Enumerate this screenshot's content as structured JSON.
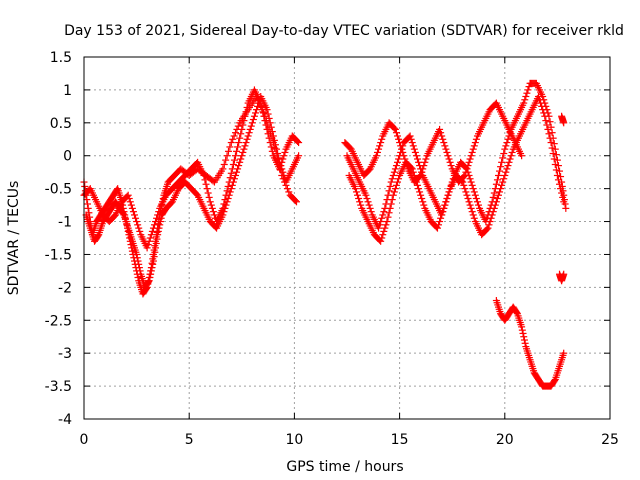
{
  "chart_data": {
    "type": "scatter",
    "title": "Day 153 of 2021, Sidereal Day-to-day VTEC variation (SDTVAR) for receiver rkld",
    "xlabel": "GPS time / hours",
    "ylabel": "SDTVAR / TECUs",
    "xlim": [
      0,
      25
    ],
    "ylim": [
      -4,
      1.5
    ],
    "xticks": [
      0,
      5,
      10,
      15,
      20,
      25
    ],
    "xtick_labels": [
      "0",
      "5",
      "10",
      "15",
      "20",
      "25"
    ],
    "yticks": [
      -4,
      -3.5,
      -3,
      -2.5,
      -2,
      -1.5,
      -1,
      -0.5,
      0,
      0.5,
      1,
      1.5
    ],
    "ytick_labels": [
      "-4",
      "-3.5",
      "-3",
      "-2.5",
      "-2",
      "-1.5",
      "-1",
      "-0.5",
      "0",
      "0.5",
      "1",
      "1.5"
    ],
    "grid": true,
    "marker": "+",
    "color": "#ff0000",
    "series": [
      {
        "name": "s1",
        "x": [
          0.0,
          0.2,
          0.4,
          0.6,
          0.8,
          1.0,
          1.2,
          1.4,
          1.6,
          1.8,
          2.0,
          2.2,
          2.4,
          2.6,
          2.8,
          3.0,
          3.2,
          3.4,
          3.6,
          3.8,
          4.0,
          4.3,
          4.6,
          5.0,
          5.4,
          5.8,
          6.2,
          6.6,
          7.0,
          7.4,
          7.8,
          8.2,
          8.6,
          9.0,
          9.4,
          9.8,
          10.1
        ],
        "y": [
          -0.4,
          -0.8,
          -1.2,
          -1.0,
          -0.9,
          -0.8,
          -0.7,
          -0.6,
          -0.5,
          -0.7,
          -1.0,
          -1.3,
          -1.6,
          -1.9,
          -2.1,
          -2.0,
          -1.7,
          -1.3,
          -0.9,
          -0.6,
          -0.4,
          -0.3,
          -0.2,
          -0.3,
          -0.2,
          -0.3,
          -0.4,
          -0.2,
          0.2,
          0.5,
          0.7,
          0.9,
          0.6,
          0.2,
          -0.3,
          -0.6,
          -0.7
        ]
      },
      {
        "name": "s2",
        "x": [
          0.1,
          0.3,
          0.5,
          0.7,
          0.9,
          1.1,
          1.3,
          1.5,
          1.7,
          1.9,
          2.1,
          2.3,
          2.5,
          2.7,
          2.9,
          3.1,
          3.3,
          3.5,
          3.7,
          3.9,
          4.2,
          4.5,
          4.8,
          5.1,
          5.4,
          5.7,
          6.0,
          6.3,
          6.6,
          6.9,
          7.2,
          7.5,
          7.8,
          8.1,
          8.4,
          8.7,
          9.0,
          9.3,
          9.6,
          9.9,
          10.2
        ],
        "y": [
          -0.9,
          -1.1,
          -1.3,
          -1.2,
          -1.0,
          -0.9,
          -0.8,
          -0.7,
          -0.8,
          -0.9,
          -1.1,
          -1.3,
          -1.5,
          -1.8,
          -2.0,
          -1.9,
          -1.6,
          -1.2,
          -0.9,
          -0.8,
          -0.7,
          -0.5,
          -0.4,
          -0.5,
          -0.6,
          -0.8,
          -1.0,
          -1.1,
          -0.9,
          -0.6,
          -0.3,
          0.0,
          0.3,
          0.6,
          0.9,
          0.7,
          0.3,
          -0.1,
          -0.4,
          -0.2,
          0.0
        ]
      },
      {
        "name": "s3",
        "x": [
          0.0,
          0.3,
          0.6,
          0.9,
          1.2,
          1.5,
          1.8,
          2.1,
          2.4,
          2.7,
          3.0,
          3.3,
          3.6,
          3.9,
          4.2,
          4.5,
          4.8,
          5.1,
          5.4,
          5.7,
          6.0,
          6.3,
          6.6,
          6.9,
          7.2,
          7.5,
          7.8,
          8.1,
          8.4,
          8.7,
          9.0,
          9.3,
          9.6,
          9.9,
          10.2
        ],
        "y": [
          -0.6,
          -0.5,
          -0.7,
          -0.9,
          -1.0,
          -0.9,
          -0.7,
          -0.6,
          -0.9,
          -1.2,
          -1.4,
          -1.1,
          -0.8,
          -0.6,
          -0.5,
          -0.4,
          -0.3,
          -0.2,
          -0.1,
          -0.3,
          -0.7,
          -1.0,
          -0.8,
          -0.4,
          0.0,
          0.4,
          0.8,
          1.0,
          0.8,
          0.4,
          0.0,
          -0.2,
          0.1,
          0.3,
          0.2
        ]
      },
      {
        "name": "s4",
        "x": [
          12.5,
          12.8,
          13.1,
          13.4,
          13.7,
          14.0,
          14.3,
          14.6,
          14.9,
          15.2,
          15.5,
          15.8,
          16.1,
          16.4,
          16.7,
          17.0,
          17.3,
          17.6,
          17.9,
          18.2,
          18.5,
          18.8,
          19.1,
          19.4,
          19.7,
          20.0,
          20.3,
          20.6,
          20.9,
          21.2,
          21.5,
          21.8,
          22.1,
          22.4,
          22.7,
          22.9
        ],
        "y": [
          0.0,
          -0.2,
          -0.4,
          -0.6,
          -0.9,
          -1.1,
          -0.8,
          -0.4,
          -0.1,
          0.2,
          0.3,
          0.0,
          -0.3,
          -0.5,
          -0.7,
          -0.9,
          -0.6,
          -0.3,
          -0.1,
          -0.2,
          -0.5,
          -0.8,
          -1.0,
          -0.7,
          -0.3,
          0.1,
          0.4,
          0.6,
          0.8,
          1.1,
          1.1,
          0.9,
          0.6,
          0.1,
          -0.4,
          -0.8
        ]
      },
      {
        "name": "s5",
        "x": [
          12.6,
          12.9,
          13.2,
          13.5,
          13.8,
          14.1,
          14.4,
          14.7,
          15.0,
          15.3,
          15.6,
          15.9,
          16.2,
          16.5,
          16.8,
          17.1,
          17.4,
          17.7,
          18.0,
          18.3,
          18.6,
          18.9,
          19.2,
          19.5,
          19.8,
          20.1,
          20.4,
          20.7,
          21.0,
          21.3,
          21.6,
          21.9,
          22.2,
          22.5,
          22.8
        ],
        "y": [
          -0.3,
          -0.5,
          -0.8,
          -1.0,
          -1.2,
          -1.3,
          -1.0,
          -0.6,
          -0.3,
          -0.1,
          -0.2,
          -0.5,
          -0.8,
          -1.0,
          -1.1,
          -0.8,
          -0.5,
          -0.3,
          -0.4,
          -0.7,
          -1.0,
          -1.2,
          -1.1,
          -0.8,
          -0.5,
          -0.2,
          0.1,
          0.3,
          0.5,
          0.7,
          0.9,
          0.6,
          0.2,
          -0.3,
          -0.7
        ]
      },
      {
        "name": "s6",
        "x": [
          12.4,
          12.7,
          13.0,
          13.3,
          13.6,
          13.9,
          14.2,
          14.5,
          14.8,
          15.1,
          15.4,
          15.7,
          16.0,
          16.3,
          16.6,
          16.9,
          17.2,
          17.5,
          17.8,
          18.1,
          18.4,
          18.7,
          19.0,
          19.3,
          19.6,
          19.9,
          20.2,
          20.5,
          20.8
        ],
        "y": [
          0.2,
          0.1,
          -0.1,
          -0.3,
          -0.2,
          0.0,
          0.3,
          0.5,
          0.4,
          0.1,
          -0.2,
          -0.4,
          -0.3,
          0.0,
          0.2,
          0.4,
          0.1,
          -0.2,
          -0.4,
          -0.3,
          0.0,
          0.3,
          0.5,
          0.7,
          0.8,
          0.6,
          0.4,
          0.2,
          0.0
        ]
      },
      {
        "name": "s7",
        "x": [
          19.6,
          19.8,
          20.0,
          20.2,
          20.4,
          20.6,
          20.8,
          21.0,
          21.2,
          21.4,
          21.6,
          21.8,
          22.0,
          22.2,
          22.4,
          22.6,
          22.8
        ],
        "y": [
          -2.2,
          -2.4,
          -2.5,
          -2.4,
          -2.3,
          -2.4,
          -2.6,
          -2.9,
          -3.1,
          -3.3,
          -3.4,
          -3.5,
          -3.5,
          -3.5,
          -3.4,
          -3.2,
          -3.0
        ]
      },
      {
        "name": "s8",
        "x": [
          22.6,
          22.7,
          22.8
        ],
        "y": [
          -1.8,
          -1.9,
          -1.8
        ]
      },
      {
        "name": "s9",
        "x": [
          22.7,
          22.8
        ],
        "y": [
          0.6,
          0.5
        ]
      }
    ]
  }
}
